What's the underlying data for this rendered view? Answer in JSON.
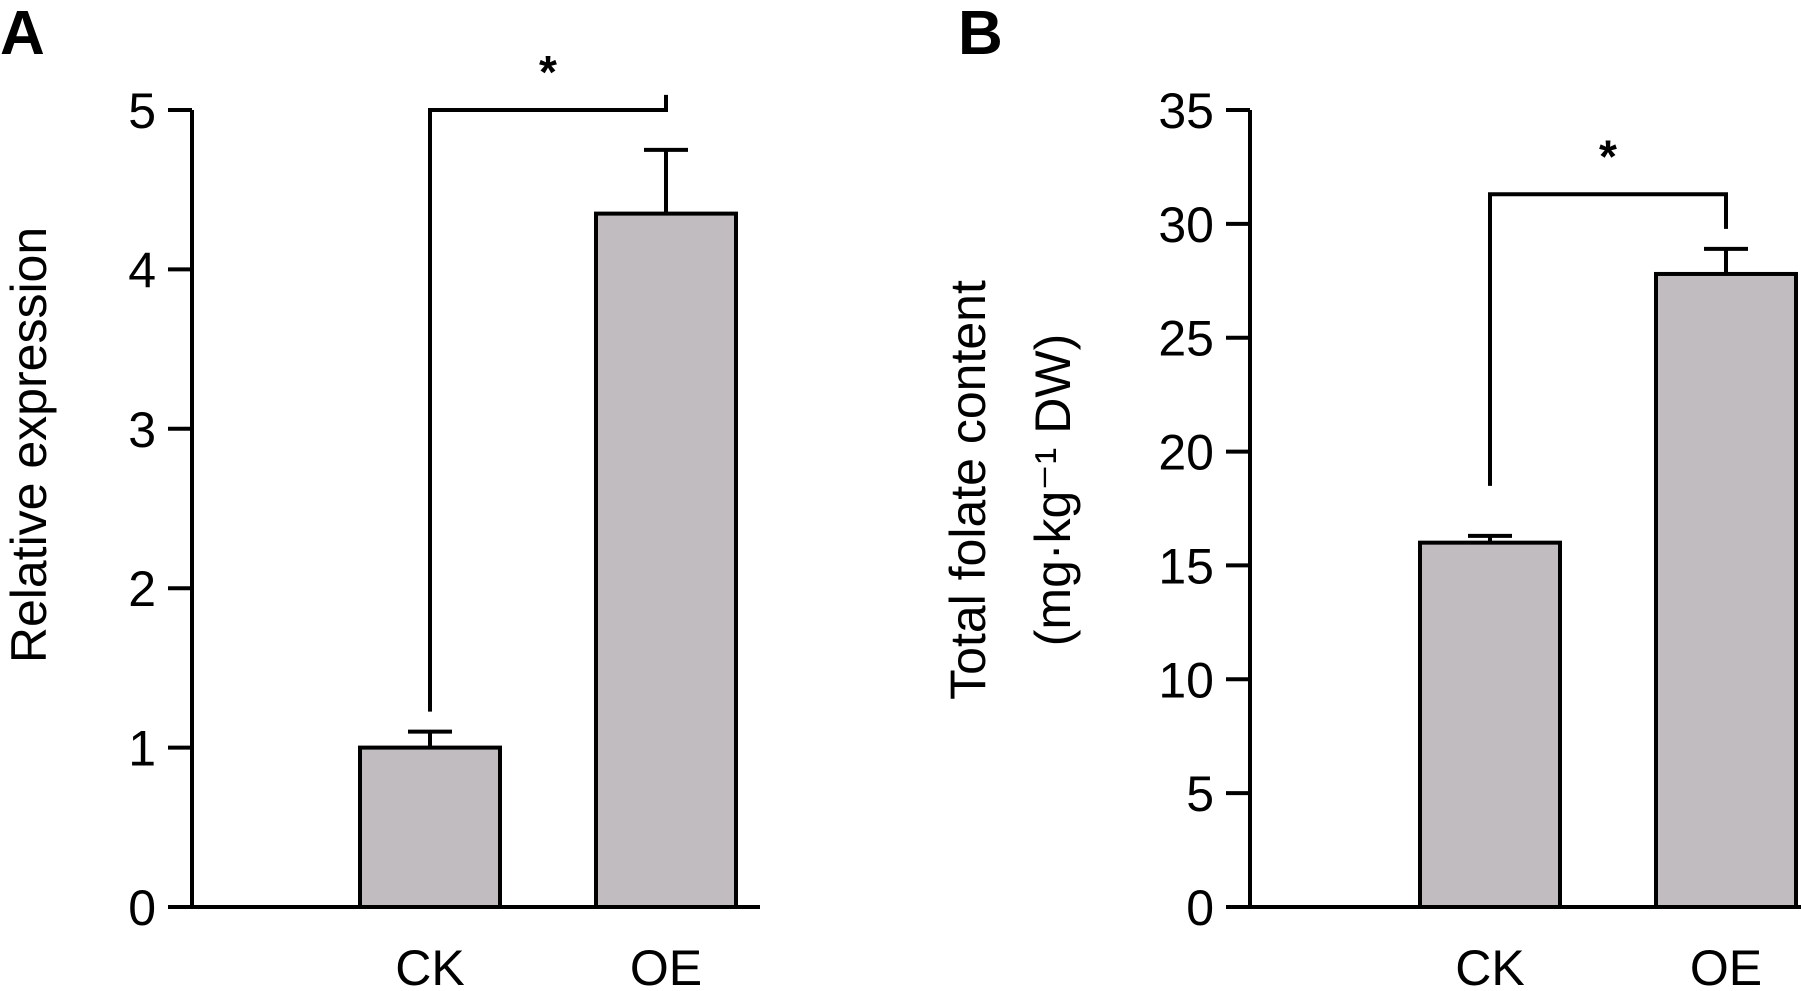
{
  "chart_data": [
    {
      "type": "bar",
      "panel_label": "A",
      "categories": [
        "CK",
        "OE"
      ],
      "values": [
        1.0,
        4.35
      ],
      "errors": [
        0.1,
        0.4
      ],
      "ylabel": "Relative expression",
      "ylabel_line2": "",
      "ylim": [
        0,
        5
      ],
      "yticks": [
        "0",
        "1",
        "2",
        "3",
        "4",
        "5"
      ],
      "tick_values": [
        0,
        1,
        2,
        3,
        4,
        5
      ],
      "bar_color": "#c0bcc0",
      "significance": "*",
      "grid": false
    },
    {
      "type": "bar",
      "panel_label": "B",
      "categories": [
        "CK",
        "OE"
      ],
      "values": [
        16.0,
        27.8
      ],
      "errors": [
        0.3,
        1.1
      ],
      "ylabel": "Total folate content",
      "ylabel_line2": "(mg·kg⁻¹ DW)",
      "ylim": [
        0,
        35
      ],
      "yticks": [
        "0",
        "5",
        "10",
        "15",
        "20",
        "25",
        "30",
        "35"
      ],
      "tick_values": [
        0,
        5,
        10,
        15,
        20,
        25,
        30,
        35
      ],
      "bar_color": "#c0bcc0",
      "significance": "*",
      "grid": false
    }
  ]
}
